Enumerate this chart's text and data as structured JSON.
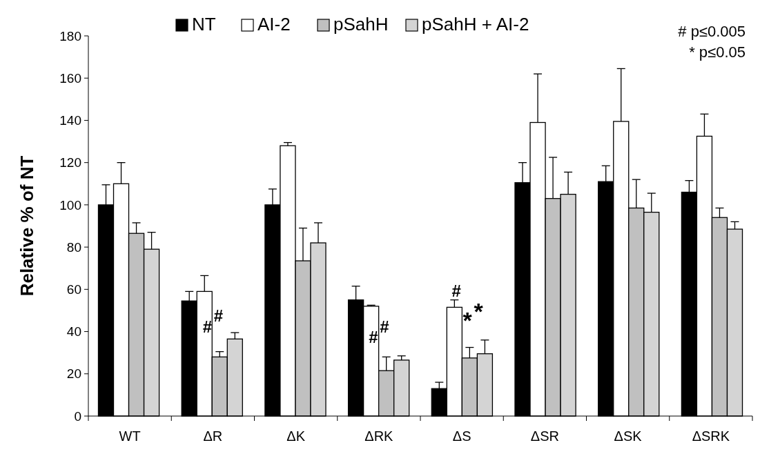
{
  "chart_data": {
    "type": "bar",
    "ylabel": "Relative % of NT",
    "categories": [
      "WT",
      "ΔR",
      "ΔK",
      "ΔRK",
      "ΔS",
      "ΔSR",
      "ΔSK",
      "ΔSRK"
    ],
    "series": [
      {
        "name": "NT",
        "color": "#000000",
        "values": [
          100,
          54.5,
          100,
          55,
          13,
          110.5,
          111,
          106
        ],
        "errors": [
          [
            100,
            109.5
          ],
          [
            54.5,
            59
          ],
          [
            100,
            107.5
          ],
          [
            55,
            61.5
          ],
          [
            13,
            16
          ],
          [
            110.5,
            120
          ],
          [
            111,
            118.5
          ],
          [
            106,
            111.5
          ]
        ]
      },
      {
        "name": "AI-2",
        "color": "#ffffff",
        "values": [
          110,
          59,
          128,
          52,
          51.5,
          139,
          139.5,
          132.5
        ],
        "errors": [
          [
            110,
            120
          ],
          [
            59,
            66.5
          ],
          [
            128,
            129.5
          ],
          [
            52,
            52.5
          ],
          [
            51.5,
            55
          ],
          [
            139,
            162
          ],
          [
            139.5,
            164.5
          ],
          [
            132.5,
            143
          ]
        ]
      },
      {
        "name": "pSahH",
        "color": "#c0c0c0",
        "values": [
          86.5,
          28,
          73.5,
          21.5,
          27.5,
          103,
          98.5,
          94
        ],
        "errors": [
          [
            86.5,
            91.5
          ],
          [
            28,
            30.5
          ],
          [
            73.5,
            89
          ],
          [
            21.5,
            28
          ],
          [
            27.5,
            32.5
          ],
          [
            103,
            122.5
          ],
          [
            98.5,
            112
          ],
          [
            94,
            98.5
          ]
        ]
      },
      {
        "name": "pSahH + AI-2",
        "color": "#d4d4d4",
        "values": [
          79,
          36.5,
          82,
          26.5,
          29.5,
          105,
          96.5,
          88.5
        ],
        "errors": [
          [
            79,
            87
          ],
          [
            36.5,
            39.5
          ],
          [
            82,
            91.5
          ],
          [
            26.5,
            28.5
          ],
          [
            29.5,
            36
          ],
          [
            105,
            115.5
          ],
          [
            96.5,
            105.5
          ],
          [
            88.5,
            92
          ]
        ]
      }
    ],
    "ylim": [
      0,
      180
    ],
    "yticks": [
      0,
      20,
      40,
      60,
      80,
      100,
      120,
      140,
      160,
      180
    ],
    "legend": "top",
    "annotations": [
      {
        "text": "#",
        "x": "ΔR",
        "y": 38
      },
      {
        "text": "#",
        "x": "ΔR",
        "y": 43
      },
      {
        "text": "#",
        "x": "ΔRK",
        "y": 33
      },
      {
        "text": "#",
        "x": "ΔRK",
        "y": 38
      },
      {
        "text": "#",
        "x": "ΔS",
        "y": 55
      },
      {
        "text": "*",
        "x": "ΔS",
        "y": 40
      },
      {
        "text": "*",
        "x": "ΔS",
        "y": 44
      },
      "# p≤0.005",
      "* p≤0.05"
    ]
  }
}
